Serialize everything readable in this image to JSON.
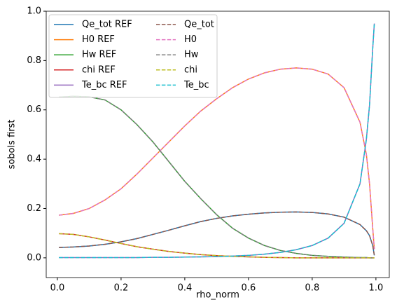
{
  "chart_data": {
    "type": "line",
    "xlabel": "rho_norm",
    "ylabel": "sobols first",
    "x": [
      0.005,
      0.05,
      0.1,
      0.15,
      0.2,
      0.25,
      0.3,
      0.35,
      0.4,
      0.45,
      0.5,
      0.55,
      0.6,
      0.65,
      0.7,
      0.75,
      0.8,
      0.85,
      0.9,
      0.95,
      0.97,
      0.98,
      0.99,
      0.995
    ],
    "xlim": [
      -0.035,
      1.042
    ],
    "ylim": [
      -0.08,
      1.0
    ],
    "xticks": [
      {
        "value": 0,
        "label": "0.0"
      },
      0.2,
      0.4,
      0.6,
      0.8,
      {
        "value": 1,
        "label": "1.0"
      }
    ],
    "yticks": [
      {
        "value": 0,
        "label": "0.0"
      },
      0.2,
      0.4,
      0.6,
      0.8,
      {
        "value": 1,
        "label": "1.0"
      }
    ],
    "legend": "upper left",
    "legend_columns": 2,
    "series": [
      {
        "name": "Qe_tot REF",
        "color": "#1f77b4",
        "linestyle": "solid",
        "values": [
          0.042,
          0.044,
          0.048,
          0.055,
          0.065,
          0.078,
          0.095,
          0.112,
          0.13,
          0.147,
          0.16,
          0.17,
          0.177,
          0.182,
          0.185,
          0.186,
          0.184,
          0.178,
          0.165,
          0.135,
          0.11,
          0.09,
          0.05,
          0.01
        ]
      },
      {
        "name": "H0 REF",
        "color": "#ff7f0e",
        "linestyle": "solid",
        "values": [
          0.173,
          0.18,
          0.2,
          0.235,
          0.28,
          0.34,
          0.405,
          0.47,
          0.535,
          0.595,
          0.645,
          0.69,
          0.725,
          0.75,
          0.765,
          0.77,
          0.765,
          0.745,
          0.69,
          0.55,
          0.42,
          0.3,
          0.12,
          0.035
        ]
      },
      {
        "name": "Hw REF",
        "color": "#2ca02c",
        "linestyle": "solid",
        "values": [
          0.652,
          0.655,
          0.653,
          0.64,
          0.6,
          0.54,
          0.47,
          0.39,
          0.31,
          0.24,
          0.175,
          0.12,
          0.08,
          0.05,
          0.03,
          0.018,
          0.01,
          0.006,
          0.003,
          0.001,
          0.001,
          0,
          0,
          0
        ]
      },
      {
        "name": "chi REF",
        "color": "#d62728",
        "linestyle": "solid",
        "values": [
          0.098,
          0.095,
          0.085,
          0.072,
          0.058,
          0.045,
          0.035,
          0.026,
          0.019,
          0.013,
          0.009,
          0.006,
          0.004,
          0.002,
          0.001,
          0,
          0,
          0,
          0,
          0,
          0,
          0,
          0,
          0
        ]
      },
      {
        "name": "Te_bc REF",
        "color": "#9467bd",
        "linestyle": "solid",
        "values": [
          0.001,
          0.001,
          0.001,
          0.001,
          0.001,
          0.001,
          0.002,
          0.002,
          0.003,
          0.004,
          0.005,
          0.007,
          0.01,
          0.015,
          0.022,
          0.033,
          0.05,
          0.08,
          0.14,
          0.3,
          0.48,
          0.62,
          0.85,
          0.95
        ]
      },
      {
        "name": "Qe_tot",
        "color": "#8c564b",
        "linestyle": "dashed",
        "values": [
          0.042,
          0.044,
          0.048,
          0.055,
          0.065,
          0.078,
          0.095,
          0.112,
          0.13,
          0.147,
          0.16,
          0.17,
          0.177,
          0.182,
          0.185,
          0.186,
          0.184,
          0.178,
          0.165,
          0.135,
          0.11,
          0.09,
          0.05,
          0.01
        ]
      },
      {
        "name": "H0",
        "color": "#e377c2",
        "linestyle": "dashed",
        "values": [
          0.173,
          0.18,
          0.2,
          0.235,
          0.28,
          0.34,
          0.405,
          0.47,
          0.535,
          0.595,
          0.645,
          0.69,
          0.725,
          0.75,
          0.765,
          0.77,
          0.765,
          0.745,
          0.69,
          0.55,
          0.42,
          0.3,
          0.12,
          0.035
        ]
      },
      {
        "name": "Hw",
        "color": "#7f7f7f",
        "linestyle": "dashed",
        "values": [
          0.652,
          0.655,
          0.653,
          0.64,
          0.6,
          0.54,
          0.47,
          0.39,
          0.31,
          0.24,
          0.175,
          0.12,
          0.08,
          0.05,
          0.03,
          0.018,
          0.01,
          0.006,
          0.003,
          0.001,
          0.001,
          0,
          0,
          0
        ]
      },
      {
        "name": "chi",
        "color": "#bcbd22",
        "linestyle": "dashed",
        "values": [
          0.098,
          0.095,
          0.085,
          0.072,
          0.058,
          0.045,
          0.035,
          0.026,
          0.019,
          0.013,
          0.009,
          0.006,
          0.004,
          0.002,
          0.001,
          0,
          0,
          0,
          0,
          0,
          0,
          0,
          0,
          0
        ]
      },
      {
        "name": "Te_bc",
        "color": "#17becf",
        "linestyle": "dashed",
        "values": [
          0.001,
          0.001,
          0.001,
          0.001,
          0.001,
          0.001,
          0.002,
          0.002,
          0.003,
          0.004,
          0.005,
          0.007,
          0.01,
          0.015,
          0.022,
          0.033,
          0.05,
          0.08,
          0.14,
          0.3,
          0.48,
          0.62,
          0.85,
          0.95
        ]
      }
    ]
  }
}
